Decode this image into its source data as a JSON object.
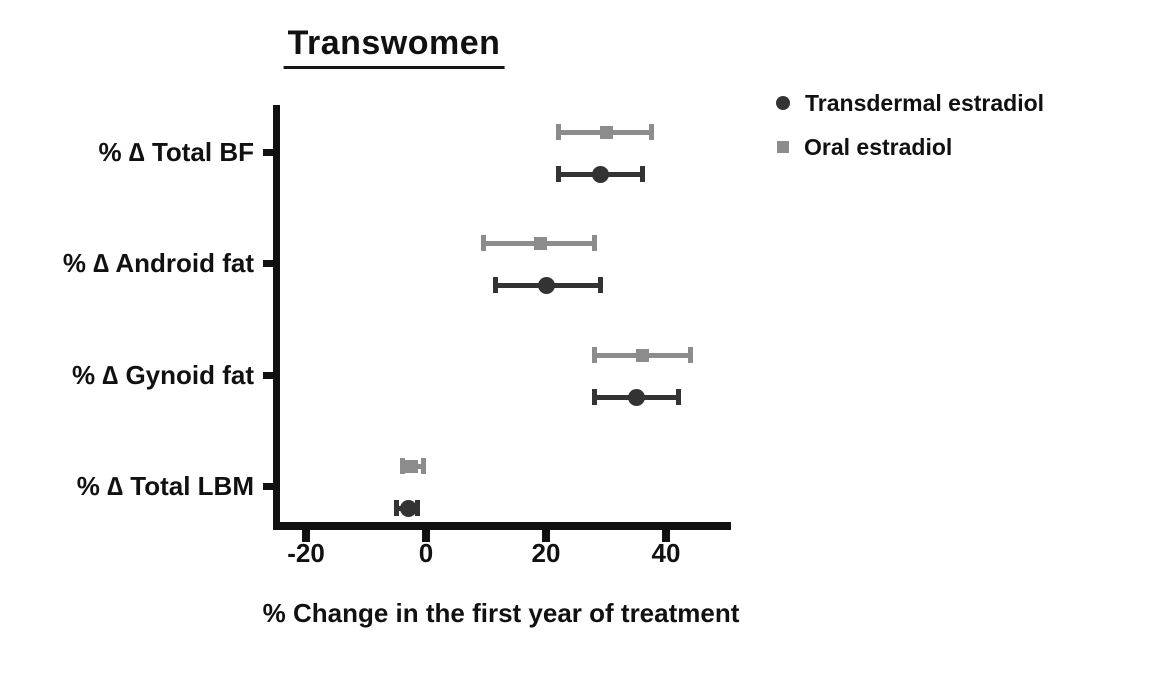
{
  "title": "Transwomen",
  "legend": {
    "position": "top-right",
    "items": [
      {
        "label": "Transdermal estradiol",
        "marker": "circle",
        "color": "#333333"
      },
      {
        "label": "Oral estradiol",
        "marker": "square",
        "color": "#8c8c8c"
      }
    ]
  },
  "chart_data": {
    "type": "scatter",
    "subtype": "horizontal-dot-plot-with-error-bars",
    "title": "Transwomen",
    "xlabel": "% Change in the first year of treatment",
    "ylabel": "",
    "categories": [
      "% ∆ Total BF",
      "% ∆ Android fat",
      "% ∆ Gynoid fat",
      "% ∆ Total LBM"
    ],
    "xticks": [
      -20,
      0,
      20,
      40
    ],
    "xtick_labels": [
      "-20",
      "0",
      "20",
      "40"
    ],
    "xlim": [
      -25,
      51
    ],
    "grid": false,
    "error_bars": true,
    "legend_position": "top-right",
    "series": [
      {
        "name": "Transdermal estradiol",
        "marker": "circle",
        "color": "#333333",
        "values": [
          29,
          20,
          35,
          -3
        ],
        "ci_low": [
          22,
          11.5,
          28,
          -5
        ],
        "ci_high": [
          36,
          29,
          42,
          -1.5
        ]
      },
      {
        "name": "Oral estradiol",
        "marker": "square",
        "color": "#8c8c8c",
        "values": [
          30,
          19,
          36,
          -2.5
        ],
        "ci_low": [
          22,
          9.5,
          28,
          -4
        ],
        "ci_high": [
          37.5,
          28,
          44,
          -0.5
        ]
      }
    ]
  }
}
